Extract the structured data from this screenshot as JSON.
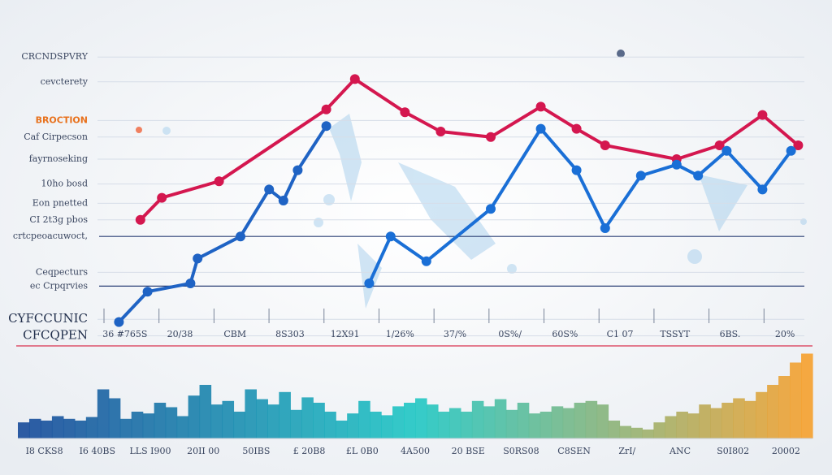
{
  "chart_data": [
    {
      "type": "line",
      "ylim": [
        -10,
        100
      ],
      "xlim": [
        0,
        100
      ],
      "yticks": [
        {
          "value": 97,
          "label": "CRCNDSPVRY"
        },
        {
          "value": 88,
          "label": "cevcterety"
        },
        {
          "value": 74,
          "label": "BROCTION"
        },
        {
          "value": 68,
          "label": "Caf Cirpecson"
        },
        {
          "value": 60,
          "label": "fayrnoseking"
        },
        {
          "value": 51,
          "label": "10ho bosd"
        },
        {
          "value": 44,
          "label": "Eon pnetted"
        },
        {
          "value": 38,
          "label": "CI 2t3g pbos"
        },
        {
          "value": 32,
          "label": "crtcpeoacuwoct,"
        },
        {
          "value": 19,
          "label": "Ceqpecturs"
        },
        {
          "value": 14,
          "label": "ec Crpqrvies"
        },
        {
          "value": 2,
          "label": "CYFCCUNIC"
        },
        {
          "value": -4,
          "label": "CFCQPEN"
        }
      ],
      "grid": true,
      "categories": [
        "36 #765S",
        "20/38",
        "CBM",
        "8S303",
        "12X91",
        "1/26%",
        "37/%",
        "0S%/",
        "60S%",
        "C1 07",
        "TSSYT",
        "6BS.",
        "20%"
      ],
      "series": [
        {
          "color": "#d4174f",
          "x": [
            6,
            9,
            17,
            32,
            36,
            43,
            48,
            55,
            62,
            67,
            71,
            81,
            87,
            93,
            98
          ],
          "values": [
            38,
            46,
            52,
            78,
            89,
            77,
            70,
            68,
            79,
            71,
            65,
            60,
            65,
            76,
            65
          ]
        },
        {
          "color": "#1f63c4",
          "x": [
            3,
            7,
            13,
            14,
            20,
            24,
            26,
            28,
            32
          ],
          "values": [
            1,
            12,
            15,
            24,
            32,
            49,
            45,
            56,
            72
          ]
        },
        {
          "color": "#1a6fd6",
          "x": [
            38,
            41,
            46,
            55,
            62,
            67,
            71,
            76,
            81,
            84,
            88,
            93,
            97
          ],
          "values": [
            15,
            32,
            23,
            42,
            71,
            56,
            35,
            54,
            58,
            54,
            63,
            49,
            63
          ]
        }
      ]
    },
    {
      "type": "bar",
      "ylim": [
        0,
        100
      ],
      "colors": [
        "#174a9a",
        "#1fc7c4",
        "#f5a02e"
      ],
      "values": [
        18,
        22,
        20,
        25,
        22,
        20,
        24,
        55,
        45,
        22,
        30,
        28,
        40,
        35,
        25,
        48,
        60,
        38,
        42,
        30,
        55,
        44,
        38,
        52,
        32,
        46,
        40,
        30,
        20,
        28,
        42,
        30,
        26,
        36,
        40,
        45,
        38,
        30,
        34,
        30,
        42,
        36,
        44,
        32,
        40,
        28,
        30,
        36,
        34,
        40,
        42,
        38,
        20,
        14,
        12,
        10,
        18,
        25,
        30,
        28,
        38,
        34,
        40,
        45,
        42,
        52,
        60,
        70,
        85,
        95
      ],
      "x_labels": [
        "I8 CKS8",
        "I6 40BS",
        "LLS I900",
        "20II 00",
        "50IBS",
        "£ 20B8",
        "£L 0B0",
        "4A500",
        "20 BSE",
        "S0RS08",
        "C8SEN",
        "ZrI/",
        "ANC",
        "S0I802",
        "20002"
      ]
    }
  ]
}
